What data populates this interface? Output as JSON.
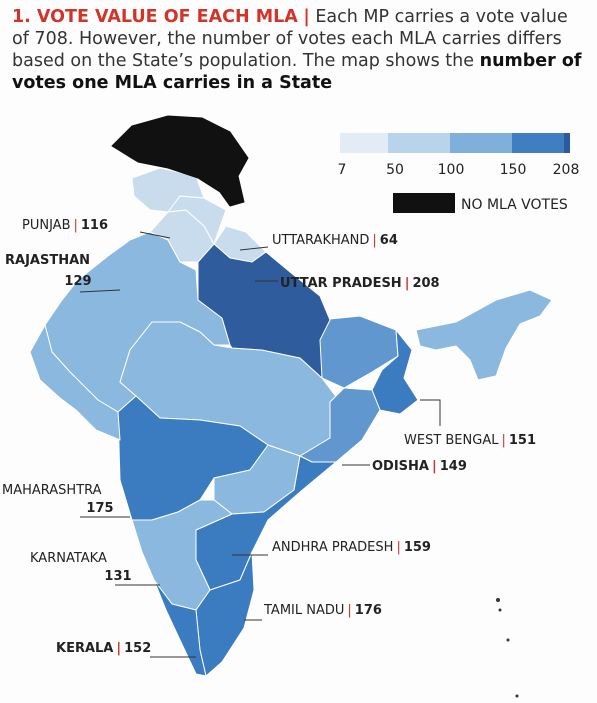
{
  "header": {
    "title": "1. VOTE VALUE OF EACH MLA",
    "separator": "|",
    "text": "Each MP carries a vote value of 708. However, the number of votes each MLA carries differs based on the State’s population. The map shows the",
    "bold_text": "number of votes one MLA carries in a State"
  },
  "legend": {
    "ticks": [
      "7",
      "50",
      "100",
      "150",
      "208"
    ],
    "colors": [
      "#e3ecf4",
      "#b9d3ea",
      "#7fb0dc",
      "#3f7fc1",
      "#2a5aa0"
    ],
    "no_votes_label": "NO MLA VOTES",
    "no_votes_color": "#111111"
  },
  "states": [
    {
      "name": "PUNJAB",
      "value": "116"
    },
    {
      "name": "RAJASTHAN",
      "value": "129"
    },
    {
      "name": "UTTARAKHAND",
      "value": "64"
    },
    {
      "name": "UTTAR PRADESH",
      "value": "208"
    },
    {
      "name": "WEST BENGAL",
      "value": "151"
    },
    {
      "name": "ODISHA",
      "value": "149"
    },
    {
      "name": "MAHARASHTRA",
      "value": "175"
    },
    {
      "name": "ANDHRA PRADESH",
      "value": "159"
    },
    {
      "name": "KARNATAKA",
      "value": "131"
    },
    {
      "name": "TAMIL NADU",
      "value": "176"
    },
    {
      "name": "KERALA",
      "value": "152"
    }
  ],
  "colors": {
    "accent_red": "#d3342a",
    "jk_black": "#111111",
    "light": "#c9dcee",
    "mid": "#8bb8df",
    "mid_dark": "#5f97ce",
    "dark": "#3b7cc0",
    "darkest": "#2f5c9c"
  }
}
